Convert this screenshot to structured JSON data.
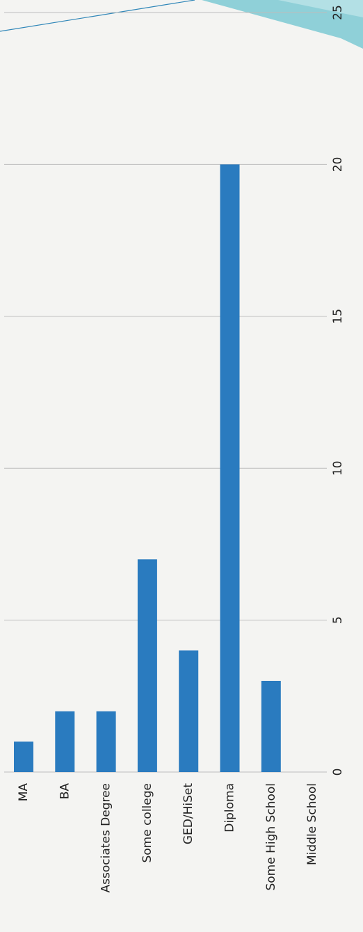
{
  "chart_data": {
    "type": "bar",
    "categories": [
      "MA",
      "BA",
      "Associates Degree",
      "Some college",
      "GED/HiSet",
      "Diploma",
      "Some High School",
      "Middle School"
    ],
    "values": [
      1,
      2,
      2,
      7,
      4,
      20,
      3,
      0
    ],
    "color": "#2a7bbf",
    "ylim": [
      0,
      25
    ],
    "yticks": [
      0,
      5,
      10,
      15,
      20,
      25
    ],
    "grid": true
  }
}
